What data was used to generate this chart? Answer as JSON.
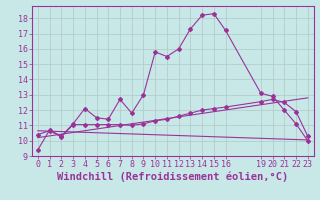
{
  "background_color": "#c8e8e8",
  "grid_color": "#b0c8c8",
  "line_color": "#993399",
  "marker_color": "#993399",
  "xlabel": "Windchill (Refroidissement éolien,°C)",
  "xlim": [
    -0.5,
    23.5
  ],
  "ylim": [
    9,
    18.8
  ],
  "yticks": [
    9,
    10,
    11,
    12,
    13,
    14,
    15,
    16,
    17,
    18
  ],
  "xticks": [
    0,
    1,
    2,
    3,
    4,
    5,
    6,
    7,
    8,
    9,
    10,
    11,
    12,
    13,
    14,
    15,
    16,
    19,
    20,
    21,
    22,
    23
  ],
  "series1_x": [
    0,
    1,
    2,
    3,
    4,
    5,
    6,
    7,
    8,
    9,
    10,
    11,
    12,
    13,
    14,
    15,
    16,
    19,
    20,
    21,
    22,
    23
  ],
  "series1_y": [
    9.4,
    10.7,
    10.3,
    11.1,
    12.1,
    11.5,
    11.4,
    12.7,
    11.8,
    13.0,
    15.8,
    15.5,
    16.0,
    17.3,
    18.2,
    18.3,
    17.2,
    13.1,
    12.9,
    12.0,
    11.1,
    10.0
  ],
  "series2_x": [
    0,
    1,
    2,
    3,
    4,
    5,
    6,
    7,
    8,
    9,
    10,
    11,
    12,
    13,
    14,
    15,
    16,
    19,
    20,
    21,
    22,
    23
  ],
  "series2_y": [
    10.4,
    10.65,
    10.25,
    11.05,
    11.05,
    11.05,
    11.05,
    11.05,
    11.0,
    11.1,
    11.3,
    11.4,
    11.6,
    11.8,
    12.0,
    12.1,
    12.2,
    12.55,
    12.7,
    12.5,
    11.9,
    10.3
  ],
  "series3_x": [
    0,
    23
  ],
  "series3_y": [
    10.2,
    12.8
  ],
  "series4_x": [
    0,
    23
  ],
  "series4_y": [
    10.65,
    10.05
  ],
  "font_color": "#993399",
  "tick_fontsize": 6.0,
  "xlabel_fontsize": 7.5
}
